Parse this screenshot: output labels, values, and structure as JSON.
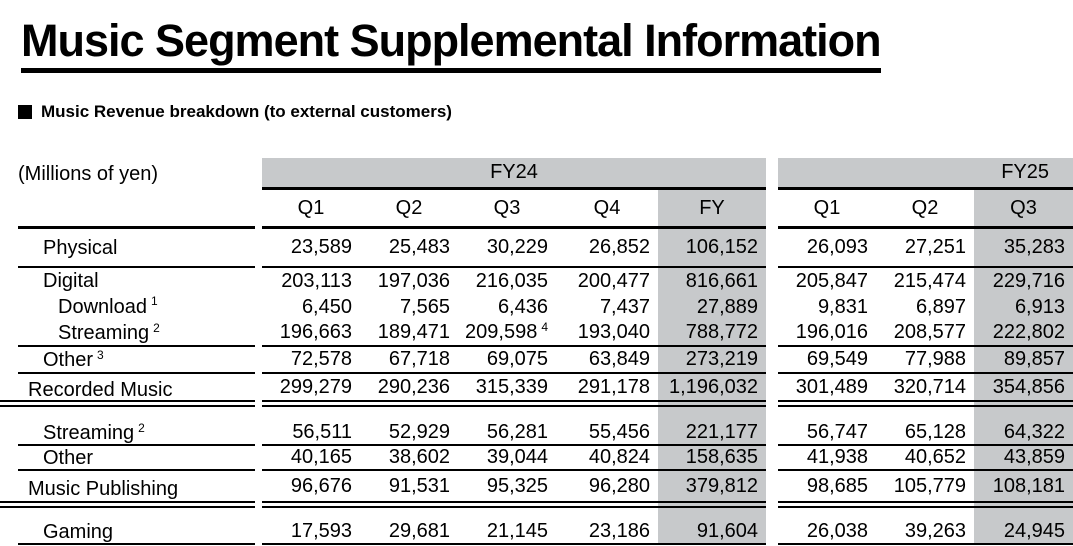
{
  "title": "Music Segment Supplemental Information",
  "subtitle": "Music Revenue breakdown (to external customers)",
  "units_label": "(Millions of yen)",
  "colors": {
    "shade": "#c7c9cb",
    "line": "#000000",
    "text": "#000000",
    "background": "#ffffff"
  },
  "table": {
    "group_headers": [
      {
        "label": "FY24"
      },
      {
        "label": "FY25"
      }
    ],
    "column_headers": [
      "Q1",
      "Q2",
      "Q3",
      "Q4",
      "FY",
      "Q1",
      "Q2",
      "Q3"
    ],
    "rows": [
      {
        "label": "Physical",
        "indent": 1,
        "sup": "",
        "underline": "single",
        "values": [
          "23,589",
          "25,483",
          "30,229",
          "26,852",
          "106,152",
          "26,093",
          "27,251",
          "35,283"
        ]
      },
      {
        "label": "Digital",
        "indent": 1,
        "sup": "",
        "underline": "none",
        "values": [
          "203,113",
          "197,036",
          "216,035",
          "200,477",
          "816,661",
          "205,847",
          "215,474",
          "229,716"
        ]
      },
      {
        "label": "Download",
        "indent": 2,
        "sup": "1",
        "underline": "none",
        "values": [
          "6,450",
          "7,565",
          "6,436",
          "7,437",
          "27,889",
          "9,831",
          "6,897",
          "6,913"
        ]
      },
      {
        "label": "Streaming",
        "indent": 2,
        "sup": "2",
        "underline": "single",
        "values": [
          "196,663",
          "189,471",
          {
            "v": "209,598",
            "sup": "4"
          },
          "193,040",
          "788,772",
          "196,016",
          "208,577",
          "222,802"
        ]
      },
      {
        "label": "Other",
        "indent": 1,
        "sup": "3",
        "underline": "single",
        "values": [
          "72,578",
          "67,718",
          "69,075",
          "63,849",
          "273,219",
          "69,549",
          "77,988",
          "89,857"
        ]
      },
      {
        "label": "Recorded Music",
        "indent": 0,
        "sup": "",
        "underline": "double",
        "values": [
          "299,279",
          "290,236",
          "315,339",
          "291,178",
          "1,196,032",
          "301,489",
          "320,714",
          "354,856"
        ]
      },
      {
        "type": "spacer"
      },
      {
        "label": "Streaming",
        "indent": 1,
        "sup": "2",
        "underline": "single",
        "values": [
          "56,511",
          "52,929",
          "56,281",
          "55,456",
          "221,177",
          "56,747",
          "65,128",
          "64,322"
        ]
      },
      {
        "label": "Other",
        "indent": 1,
        "sup": "",
        "underline": "single",
        "values": [
          "40,165",
          "38,602",
          "39,044",
          "40,824",
          "158,635",
          "41,938",
          "40,652",
          "43,859"
        ]
      },
      {
        "label": "Music Publishing",
        "indent": 0,
        "sup": "",
        "underline": "double",
        "values": [
          "96,676",
          "91,531",
          "95,325",
          "96,280",
          "379,812",
          "98,685",
          "105,779",
          "108,181"
        ]
      },
      {
        "type": "spacer"
      },
      {
        "label": "Gaming",
        "indent": 1,
        "sup": "",
        "underline": "single",
        "values": [
          "17,593",
          "29,681",
          "21,145",
          "23,186",
          "91,604",
          "26,038",
          "39,263",
          "24,945"
        ]
      }
    ]
  }
}
